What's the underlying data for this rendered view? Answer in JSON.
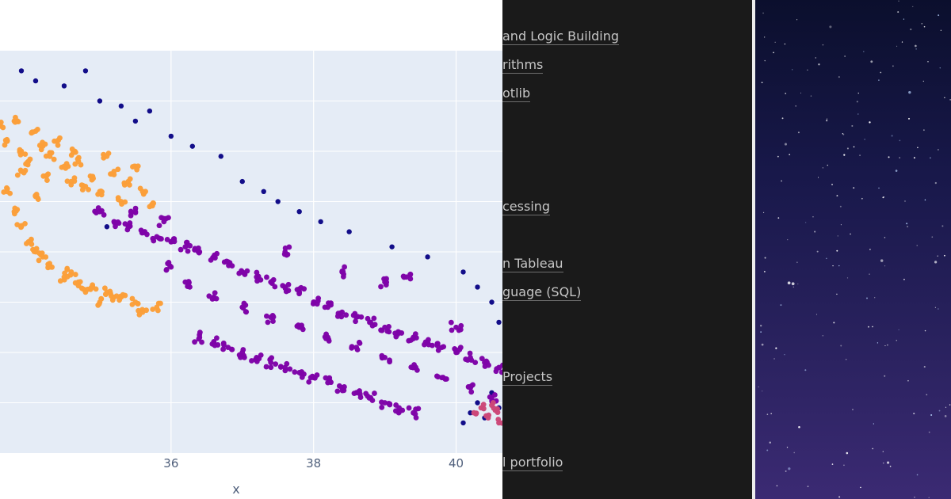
{
  "plot": {
    "x_axis_title": "x",
    "x_ticks": [
      "36",
      "38",
      "40"
    ]
  },
  "chart_data": {
    "type": "scatter",
    "title": "",
    "xlabel": "x",
    "ylabel": "",
    "x_ticks": [
      36,
      38,
      40
    ],
    "grid": true,
    "legend": "none",
    "series": [
      {
        "color": "#fb9f3a",
        "points": [
          [
            33.6,
            7.5
          ],
          [
            33.7,
            7.2
          ],
          [
            33.8,
            7.6
          ],
          [
            33.9,
            7.0
          ],
          [
            34.0,
            6.8
          ],
          [
            34.1,
            7.4
          ],
          [
            34.2,
            7.1
          ],
          [
            34.25,
            6.5
          ],
          [
            34.3,
            6.9
          ],
          [
            34.4,
            7.2
          ],
          [
            34.5,
            6.7
          ],
          [
            34.6,
            6.4
          ],
          [
            34.65,
            7.0
          ],
          [
            34.7,
            6.8
          ],
          [
            34.8,
            6.3
          ],
          [
            34.9,
            6.5
          ],
          [
            35.0,
            6.2
          ],
          [
            35.1,
            6.9
          ],
          [
            35.2,
            6.6
          ],
          [
            35.3,
            6.0
          ],
          [
            35.4,
            6.4
          ],
          [
            35.5,
            6.7
          ],
          [
            35.6,
            6.2
          ],
          [
            35.7,
            5.9
          ],
          [
            33.7,
            6.2
          ],
          [
            33.8,
            5.8
          ],
          [
            33.9,
            5.5
          ],
          [
            34.0,
            5.2
          ],
          [
            34.1,
            5.0
          ],
          [
            34.3,
            4.7
          ],
          [
            34.5,
            4.5
          ],
          [
            34.7,
            4.4
          ],
          [
            34.9,
            4.3
          ],
          [
            35.1,
            4.2
          ],
          [
            35.3,
            4.1
          ],
          [
            35.5,
            4.0
          ],
          [
            35.6,
            3.8
          ],
          [
            35.8,
            3.9
          ],
          [
            35.0,
            4.0
          ],
          [
            34.6,
            4.6
          ],
          [
            34.2,
            4.9
          ],
          [
            34.8,
            4.2
          ],
          [
            35.2,
            4.1
          ],
          [
            33.9,
            6.6
          ],
          [
            34.1,
            6.1
          ]
        ]
      },
      {
        "color": "#0d0887",
        "points": [
          [
            33.9,
            8.6
          ],
          [
            34.1,
            8.4
          ],
          [
            34.5,
            8.3
          ],
          [
            34.8,
            8.6
          ],
          [
            35.0,
            8.0
          ],
          [
            35.3,
            7.9
          ],
          [
            35.5,
            7.6
          ],
          [
            35.7,
            7.8
          ],
          [
            36.0,
            7.3
          ],
          [
            36.3,
            7.1
          ],
          [
            36.7,
            6.9
          ],
          [
            37.0,
            6.4
          ],
          [
            37.3,
            6.2
          ],
          [
            37.5,
            6.0
          ],
          [
            37.8,
            5.8
          ],
          [
            38.1,
            5.6
          ],
          [
            38.5,
            5.4
          ],
          [
            39.1,
            5.1
          ],
          [
            39.6,
            4.9
          ],
          [
            40.1,
            4.6
          ],
          [
            40.3,
            4.3
          ],
          [
            40.5,
            4.0
          ],
          [
            40.6,
            3.6
          ],
          [
            40.2,
            1.8
          ],
          [
            40.3,
            2.0
          ],
          [
            40.4,
            1.7
          ],
          [
            40.5,
            2.2
          ],
          [
            40.6,
            1.9
          ],
          [
            40.1,
            1.6
          ],
          [
            35.1,
            5.5
          ]
        ]
      },
      {
        "color": "#7e03a8",
        "points": [
          [
            35.0,
            5.8
          ],
          [
            35.2,
            5.6
          ],
          [
            35.4,
            5.5
          ],
          [
            35.6,
            5.4
          ],
          [
            35.8,
            5.3
          ],
          [
            36.0,
            5.2
          ],
          [
            36.2,
            5.1
          ],
          [
            36.4,
            5.0
          ],
          [
            36.6,
            4.9
          ],
          [
            36.8,
            4.8
          ],
          [
            37.0,
            4.6
          ],
          [
            37.2,
            4.5
          ],
          [
            37.4,
            4.4
          ],
          [
            37.6,
            4.3
          ],
          [
            37.8,
            4.2
          ],
          [
            38.0,
            4.0
          ],
          [
            38.2,
            3.9
          ],
          [
            38.4,
            3.8
          ],
          [
            38.6,
            3.7
          ],
          [
            38.8,
            3.6
          ],
          [
            39.0,
            3.5
          ],
          [
            39.2,
            3.4
          ],
          [
            39.4,
            3.3
          ],
          [
            39.6,
            3.2
          ],
          [
            39.8,
            3.1
          ],
          [
            40.0,
            3.0
          ],
          [
            40.2,
            2.9
          ],
          [
            40.4,
            2.8
          ],
          [
            40.6,
            2.7
          ],
          [
            36.4,
            3.3
          ],
          [
            36.6,
            3.2
          ],
          [
            36.8,
            3.1
          ],
          [
            37.0,
            3.0
          ],
          [
            37.2,
            2.9
          ],
          [
            37.4,
            2.8
          ],
          [
            37.6,
            2.7
          ],
          [
            37.8,
            2.6
          ],
          [
            38.0,
            2.5
          ],
          [
            38.2,
            2.4
          ],
          [
            38.4,
            2.3
          ],
          [
            38.6,
            2.2
          ],
          [
            38.8,
            2.1
          ],
          [
            39.0,
            2.0
          ],
          [
            39.2,
            1.9
          ],
          [
            39.4,
            1.8
          ],
          [
            36.2,
            4.4
          ],
          [
            36.6,
            4.1
          ],
          [
            37.0,
            3.9
          ],
          [
            37.4,
            3.7
          ],
          [
            37.8,
            3.5
          ],
          [
            38.2,
            3.3
          ],
          [
            38.6,
            3.1
          ],
          [
            39.0,
            2.9
          ],
          [
            39.4,
            2.7
          ],
          [
            39.8,
            2.5
          ],
          [
            40.2,
            2.3
          ],
          [
            40.5,
            2.1
          ],
          [
            39.0,
            4.4
          ],
          [
            39.3,
            4.5
          ],
          [
            38.4,
            4.6
          ],
          [
            37.6,
            5.0
          ],
          [
            36.0,
            4.7
          ],
          [
            35.9,
            5.6
          ],
          [
            35.5,
            5.8
          ],
          [
            40.0,
            3.5
          ]
        ]
      },
      {
        "color": "#cc4778",
        "points": [
          [
            40.25,
            1.8
          ],
          [
            40.35,
            1.9
          ],
          [
            40.45,
            1.7
          ],
          [
            40.55,
            1.85
          ],
          [
            40.6,
            1.6
          ],
          [
            40.5,
            1.95
          ]
        ]
      }
    ]
  },
  "menu": {
    "items": [
      "and Logic Building",
      "rithms",
      "otlib",
      "cessing",
      "n Tableau",
      "guage (SQL)",
      "Projects",
      "l portfolio"
    ]
  },
  "colors": {
    "plot_background": "#e5ecf6",
    "gridline": "#ffffff",
    "tick_text": "#4f5f7b",
    "menu_background": "#1a1a1a",
    "menu_text": "#c6c6c6",
    "night_sky_top": "#0b0f2d",
    "night_sky_bottom": "#3b2a73"
  },
  "icons": [
    "star-field-image"
  ]
}
